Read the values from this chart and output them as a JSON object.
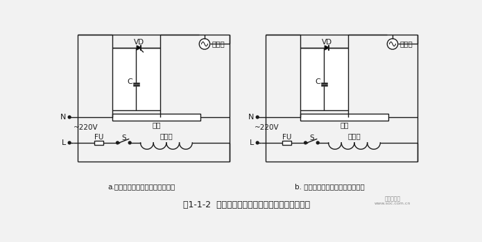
{
  "title": "图1-1-2  具有荧光灯快速延寿启动特性的电气线路",
  "label_a": "a.用晶闸管、电容组成的启动线路",
  "label_b": "b. 用二极管、电容组成的启动线路",
  "bg_color": "#f2f2f2",
  "line_color": "#1a1a1a",
  "watermark1": "电子发烧友",
  "watermark2": "www.soc.com.cn"
}
